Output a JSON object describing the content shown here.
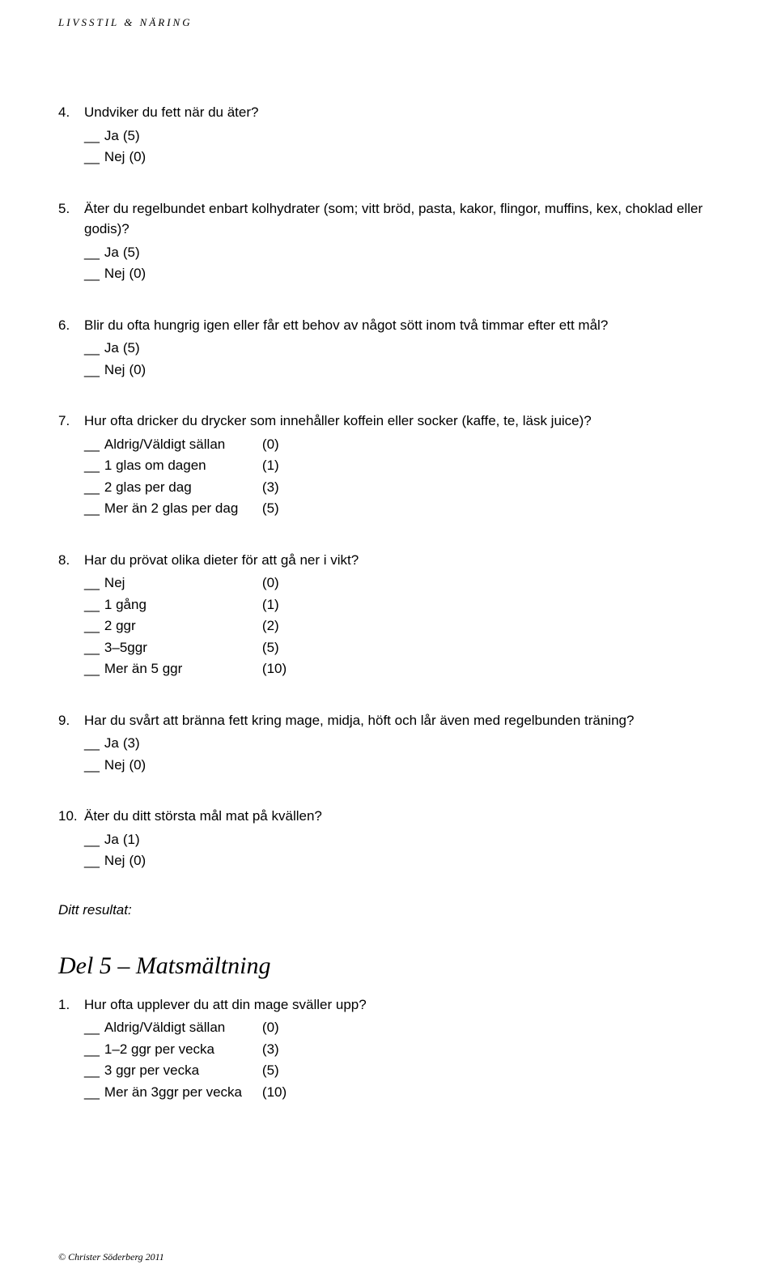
{
  "header": "LIVSSTIL & NÄRING",
  "questions_part1": [
    {
      "num": "4.",
      "text": "Undviker du fett när du äter?",
      "answers": [
        {
          "label": "Ja",
          "score": "(5)"
        },
        {
          "label": "Nej",
          "score": "(0)"
        }
      ],
      "twoCol": false
    },
    {
      "num": "5.",
      "text": "Äter du regelbundet enbart kolhydrater (som; vitt bröd, pasta, kakor, flingor, muffins, kex, choklad eller godis)?",
      "answers": [
        {
          "label": "Ja",
          "score": "(5)"
        },
        {
          "label": "Nej",
          "score": "(0)"
        }
      ],
      "twoCol": false
    },
    {
      "num": "6.",
      "text": "Blir du ofta hungrig igen eller får ett behov av något sött inom två timmar efter ett mål?",
      "answers": [
        {
          "label": "Ja",
          "score": "(5)"
        },
        {
          "label": "Nej",
          "score": "(0)"
        }
      ],
      "twoCol": false
    },
    {
      "num": "7.",
      "text": "Hur ofta dricker du drycker som innehåller koffein eller socker (kaffe, te, läsk juice)?",
      "answers": [
        {
          "label": "Aldrig/Väldigt sällan",
          "score": "(0)"
        },
        {
          "label": "1 glas om dagen",
          "score": "(1)"
        },
        {
          "label": "2 glas per dag",
          "score": "(3)"
        },
        {
          "label": "Mer än 2 glas per dag",
          "score": "(5)"
        }
      ],
      "twoCol": true
    },
    {
      "num": "8.",
      "text": "Har du prövat olika dieter för att gå ner i vikt?",
      "answers": [
        {
          "label": "Nej",
          "score": "(0)"
        },
        {
          "label": "1 gång",
          "score": "(1)"
        },
        {
          "label": "2 ggr",
          "score": "(2)"
        },
        {
          "label": "3–5ggr",
          "score": "(5)"
        },
        {
          "label": "Mer än 5 ggr",
          "score": "(10)"
        }
      ],
      "twoCol": true
    },
    {
      "num": "9.",
      "text": "Har du svårt att bränna fett kring mage, midja, höft och lår även med regelbunden träning?",
      "answers": [
        {
          "label": "Ja",
          "score": "(3)"
        },
        {
          "label": "Nej",
          "score": "(0)"
        }
      ],
      "twoCol": false
    },
    {
      "num": "10.",
      "text": "Äter du ditt största mål mat på kvällen?",
      "answers": [
        {
          "label": "Ja",
          "score": "(1)"
        },
        {
          "label": "Nej",
          "score": "(0)"
        }
      ],
      "twoCol": false
    }
  ],
  "result_label": "Ditt resultat:",
  "section_heading": "Del 5 – Matsmältning",
  "questions_part2": [
    {
      "num": "1.",
      "text": "Hur ofta upplever du att din mage sväller upp?",
      "answers": [
        {
          "label": "Aldrig/Väldigt sällan",
          "score": "(0)"
        },
        {
          "label": "1–2 ggr per vecka",
          "score": "(3)"
        },
        {
          "label": "3 ggr per vecka",
          "score": "(5)"
        },
        {
          "label": "Mer än 3ggr per vecka",
          "score": "(10)"
        }
      ],
      "twoCol": true
    }
  ],
  "footer": "© Christer Söderberg 2011",
  "blank_marker": "__"
}
